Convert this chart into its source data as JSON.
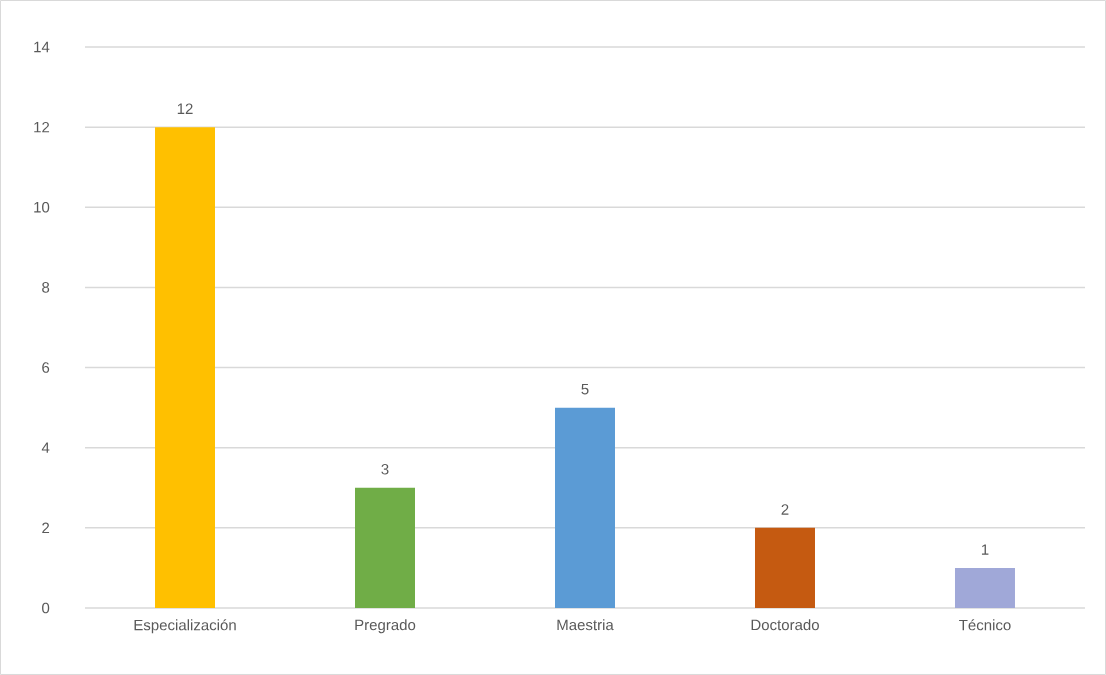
{
  "chart_data": {
    "type": "bar",
    "categories": [
      "Especialización",
      "Pregrado",
      "Maestria",
      "Doctorado",
      "Técnico"
    ],
    "values": [
      12,
      3,
      5,
      2,
      1
    ],
    "colors": [
      "#ffc000",
      "#70ad47",
      "#5b9bd5",
      "#c55a11",
      "#a0a8d8"
    ],
    "ylim": [
      0,
      14
    ],
    "yticks": [
      0,
      2,
      4,
      6,
      8,
      10,
      12,
      14
    ],
    "grid": "y",
    "data_labels": true
  }
}
